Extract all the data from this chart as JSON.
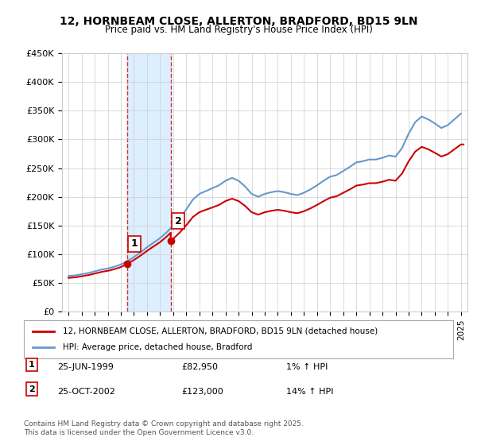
{
  "title": "12, HORNBEAM CLOSE, ALLERTON, BRADFORD, BD15 9LN",
  "subtitle": "Price paid vs. HM Land Registry's House Price Index (HPI)",
  "legend_label1": "12, HORNBEAM CLOSE, ALLERTON, BRADFORD, BD15 9LN (detached house)",
  "legend_label2": "HPI: Average price, detached house, Bradford",
  "transaction1_label": "1",
  "transaction1_date": "25-JUN-1999",
  "transaction1_price": "£82,950",
  "transaction1_hpi": "1% ↑ HPI",
  "transaction2_label": "2",
  "transaction2_date": "25-OCT-2002",
  "transaction2_price": "£123,000",
  "transaction2_hpi": "14% ↑ HPI",
  "footer": "Contains HM Land Registry data © Crown copyright and database right 2025.\nThis data is licensed under the Open Government Licence v3.0.",
  "ylim": [
    0,
    450000
  ],
  "yticks": [
    0,
    50000,
    100000,
    150000,
    200000,
    250000,
    300000,
    350000,
    400000,
    450000
  ],
  "line_color_red": "#cc0000",
  "line_color_blue": "#6699cc",
  "vline_color": "#cc0000",
  "highlight_color": "#ddeeff",
  "bg_color": "#ffffff",
  "transaction1_x": 1999.48,
  "transaction2_x": 2002.82
}
